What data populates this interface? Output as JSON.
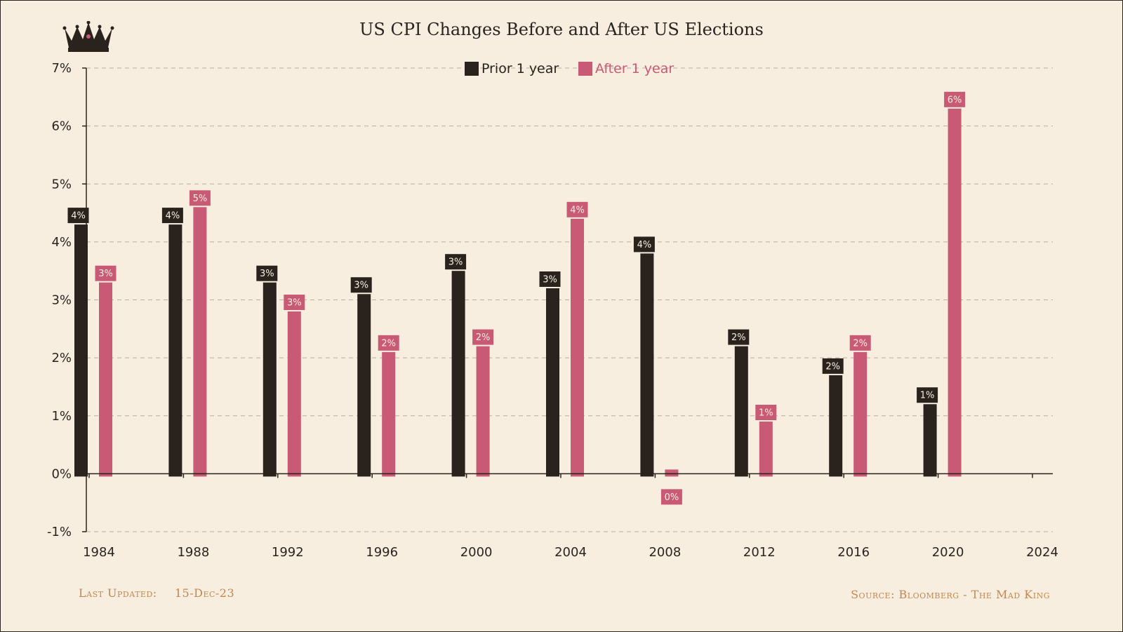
{
  "chart_data": {
    "type": "bar",
    "title": "US CPI Changes Before and After US Elections",
    "categories": [
      "1984",
      "1988",
      "1992",
      "1996",
      "2000",
      "2004",
      "2008",
      "2012",
      "2016",
      "2020",
      "2024"
    ],
    "series": [
      {
        "name": "Prior 1 year",
        "color": "#2a231d",
        "values": [
          4.3,
          4.3,
          3.3,
          3.1,
          3.5,
          3.2,
          3.8,
          2.2,
          1.7,
          1.2,
          null
        ],
        "labels": [
          "4%",
          "4%",
          "3%",
          "3%",
          "3%",
          "3%",
          "4%",
          "2%",
          "2%",
          "1%",
          null
        ]
      },
      {
        "name": "After 1 year",
        "color": "#c85a75",
        "values": [
          3.3,
          4.6,
          2.8,
          2.1,
          2.2,
          4.4,
          0.0,
          0.9,
          2.1,
          6.3,
          null
        ],
        "labels": [
          "3%",
          "5%",
          "3%",
          "2%",
          "2%",
          "4%",
          "0%",
          "1%",
          "2%",
          "6%",
          null
        ]
      }
    ],
    "ylim": [
      -1,
      7
    ],
    "yticks": [
      "-1%",
      "0%",
      "1%",
      "2%",
      "3%",
      "4%",
      "5%",
      "6%",
      "7%"
    ],
    "grid": true,
    "legend": "top-center",
    "xlabel": "",
    "ylabel": ""
  },
  "crown_icon": "crown-icon",
  "footer": {
    "last_updated_label": "Last Updated:",
    "last_updated_value": "15-Dec-23",
    "source": "Source: Bloomberg - The Mad King"
  },
  "colors": {
    "background": "#f7eedf",
    "prior": "#2a231d",
    "after": "#c85a75",
    "footer_text": "#c2874f"
  }
}
